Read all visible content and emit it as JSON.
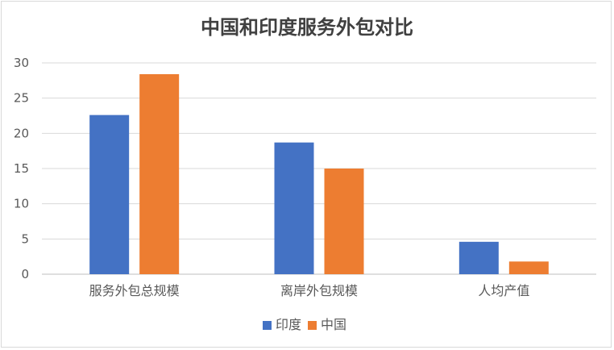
{
  "chart_data": {
    "type": "bar",
    "title": "中国和印度服务外包对比",
    "xlabel": "",
    "ylabel": "",
    "ylim": [
      0,
      30
    ],
    "yticks": [
      0,
      5,
      10,
      15,
      20,
      25,
      30
    ],
    "grid": true,
    "legend_position": "bottom",
    "categories": [
      "服务外包总规模",
      "离岸外包规模",
      "人均产值"
    ],
    "series": [
      {
        "name": "印度",
        "values": [
          22.6,
          18.7,
          4.6
        ],
        "color": "#4472C4"
      },
      {
        "name": "中国",
        "values": [
          28.4,
          15.0,
          1.8
        ],
        "color": "#ED7D31"
      }
    ]
  }
}
